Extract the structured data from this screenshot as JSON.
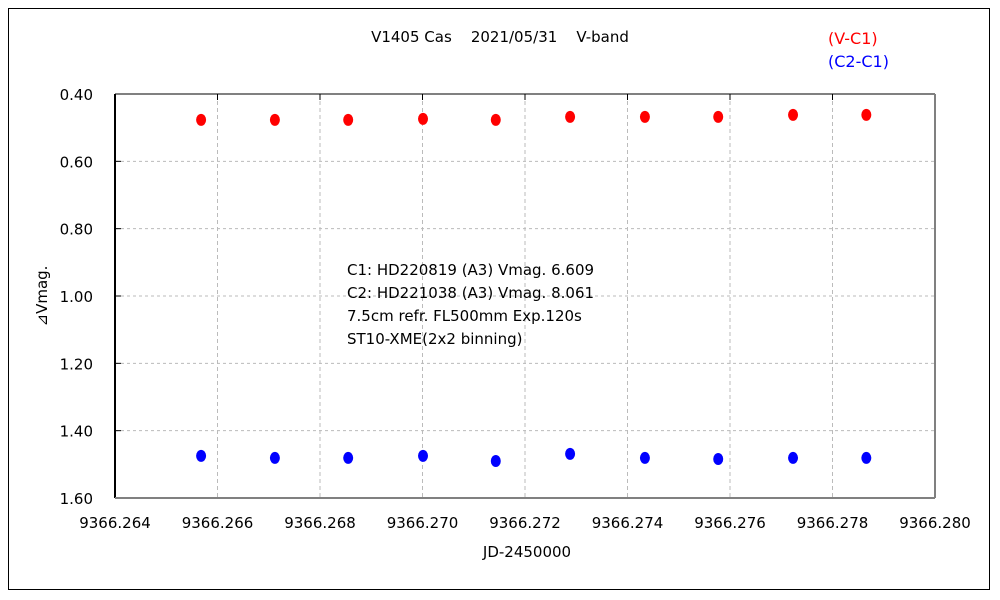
{
  "chart_data": {
    "type": "scatter",
    "title": "V1405 Cas    2021/05/31    V-band",
    "xlabel": "JD-2450000",
    "ylabel": "⊿Vmag.",
    "xlim": [
      9366.264,
      9366.28
    ],
    "ylim": [
      1.6,
      0.4
    ],
    "y_inverted": true,
    "grid": true,
    "x_ticks": [
      "9366.264",
      "9366.266",
      "9366.268",
      "9366.270",
      "9366.272",
      "9366.274",
      "9366.276",
      "9366.278",
      "9366.280"
    ],
    "y_ticks": [
      "0.40",
      "0.60",
      "0.80",
      "1.00",
      "1.20",
      "1.40",
      "1.60"
    ],
    "legend_placement": "top-right",
    "series": [
      {
        "name": "(V-C1)",
        "color": "#ff0000",
        "x": [
          9366.26568,
          9366.26712,
          9366.26855,
          9366.27001,
          9366.27143,
          9366.27288,
          9366.27434,
          9366.27577,
          9366.27723,
          9366.27866
        ],
        "y": [
          0.477,
          0.477,
          0.477,
          0.474,
          0.477,
          0.468,
          0.468,
          0.468,
          0.462,
          0.462
        ]
      },
      {
        "name": "(C2-C1)",
        "color": "#0000ff",
        "x": [
          9366.26568,
          9366.26712,
          9366.26855,
          9366.27001,
          9366.27143,
          9366.27288,
          9366.27434,
          9366.27577,
          9366.27723,
          9366.27866
        ],
        "y": [
          1.475,
          1.481,
          1.481,
          1.475,
          1.49,
          1.469,
          1.481,
          1.484,
          1.481,
          1.481
        ]
      }
    ],
    "annotations": [
      "C1: HD220819 (A3) Vmag. 6.609",
      "C2: HD221038 (A3) Vmag. 8.061",
      "7.5cm refr. FL500mm  Exp.120s",
      "ST10-XME(2x2 binning)"
    ]
  }
}
